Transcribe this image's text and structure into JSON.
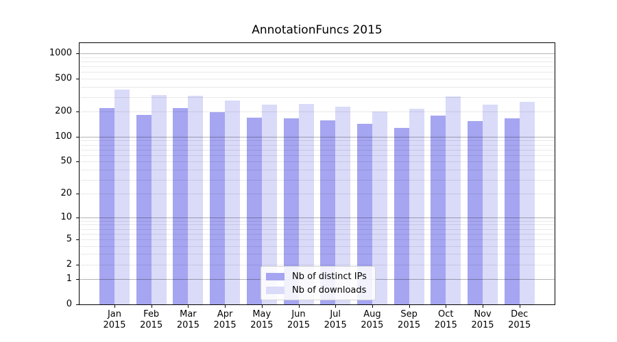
{
  "chart_data": {
    "type": "bar",
    "title": "AnnotationFuncs 2015",
    "year": "2015",
    "categories": [
      "Jan",
      "Feb",
      "Mar",
      "Apr",
      "May",
      "Jun",
      "Jul",
      "Aug",
      "Sep",
      "Oct",
      "Nov",
      "Dec"
    ],
    "series": [
      {
        "name": "Nb of distinct IPs",
        "color": "#a5a5f1",
        "values": [
          220,
          182,
          220,
          198,
          170,
          168,
          158,
          143,
          127,
          180,
          154,
          166
        ]
      },
      {
        "name": "Nb of downloads",
        "color": "#dadaf9",
        "values": [
          370,
          315,
          310,
          272,
          245,
          250,
          230,
          200,
          216,
          305,
          245,
          262
        ]
      }
    ],
    "yscale": "log1p",
    "ylim": [
      0,
      1350
    ],
    "y_ticks": [
      0,
      1,
      2,
      5,
      10,
      20,
      50,
      100,
      200,
      500,
      1000
    ],
    "y_major_gridline_values": [
      1,
      10,
      100,
      1000
    ],
    "grid": true,
    "legend_position": "lower center",
    "xlabel": "",
    "ylabel": ""
  },
  "colors": {
    "major_grid": "rgba(0,0,0,0.30)",
    "minor_grid": "rgba(0,0,0,0.085)",
    "spine": "#000000",
    "text": "#000000",
    "legend_border": "#d5d5d5",
    "legend_bg": "rgba(255,255,255,0.85)"
  }
}
